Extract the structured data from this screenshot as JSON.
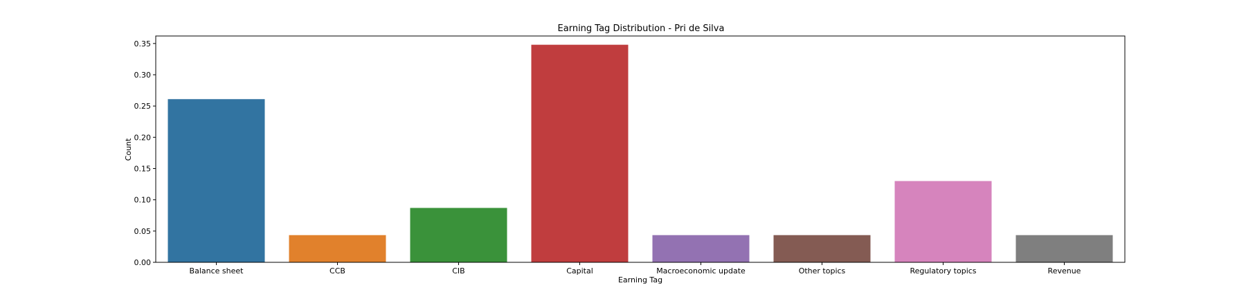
{
  "chart_data": {
    "type": "bar",
    "title": "Earning Tag Distribution - Pri de Silva",
    "xlabel": "Earning Tag",
    "ylabel": "Count",
    "ylim": [
      0,
      0.362
    ],
    "yticks": [
      "0.00",
      "0.05",
      "0.10",
      "0.15",
      "0.20",
      "0.25",
      "0.30",
      "0.35"
    ],
    "ytick_values": [
      0,
      0.05,
      0.1,
      0.15,
      0.2,
      0.25,
      0.3,
      0.35
    ],
    "grid": false,
    "categories": [
      "Balance sheet",
      "CCB",
      "CIB",
      "Capital",
      "Macroeconomic update",
      "Other topics",
      "Regulatory topics",
      "Revenue"
    ],
    "values": [
      0.261,
      0.0435,
      0.087,
      0.348,
      0.0435,
      0.0435,
      0.13,
      0.0435
    ],
    "colors": [
      "#3274a1",
      "#e1812c",
      "#3a923a",
      "#c03d3e",
      "#9372b2",
      "#845b53",
      "#d684bd",
      "#7f7f7f"
    ]
  }
}
